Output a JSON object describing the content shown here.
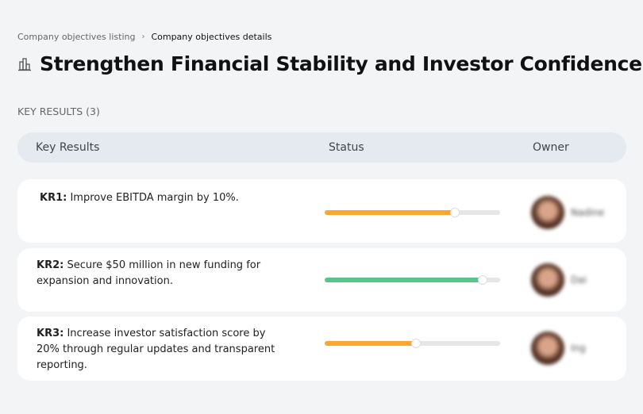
{
  "breadcrumb": {
    "items": [
      "Company objectives listing",
      "Company objectives details"
    ],
    "separator": "›"
  },
  "title": {
    "icon": "building-icon",
    "text": "Strengthen Financial Stability and Investor Confidence"
  },
  "key_results_count_label": "KEY RESULTS (3)",
  "table": {
    "headers": [
      "Key Results",
      "Status",
      "Owner"
    ],
    "rows": [
      {
        "id": "KR1:",
        "text": " Improve EBITDA margin by 10%.",
        "progress": 74,
        "color": "#ffa630",
        "owner": "Nadine"
      },
      {
        "id": "KR2:",
        "text": " Secure $50 million in new funding for expansion and innovation.",
        "progress": 90,
        "color": "#57c58d",
        "owner": "Dai"
      },
      {
        "id": "KR3:",
        "text": " Increase investor satisfaction score by 20% through regular updates and transparent reporting.",
        "progress": 52,
        "color": "#ffa630",
        "owner": "Ing"
      }
    ]
  }
}
